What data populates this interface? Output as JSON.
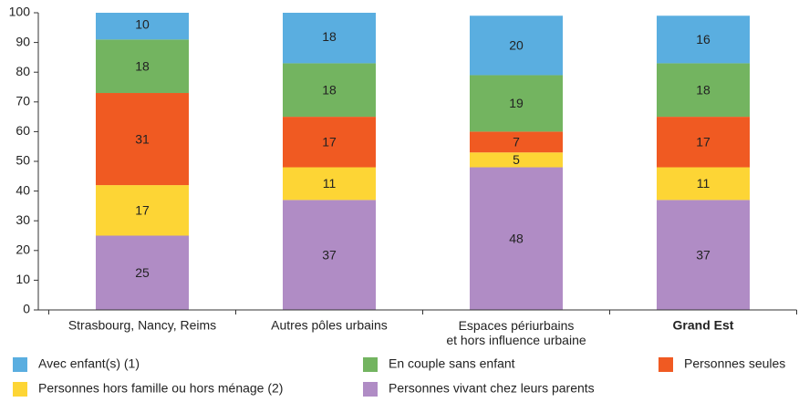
{
  "chart_data": {
    "type": "stacked_bar",
    "categories": [
      "Strasbourg, Nancy, Reims",
      "Autres pôles urbains",
      "Espaces périurbains\net hors influence urbaine",
      "Grand Est"
    ],
    "series": [
      {
        "name": "Avec enfant(s) (1)",
        "color": "#5aaee0",
        "values": [
          10,
          18,
          20,
          16
        ]
      },
      {
        "name": "En couple sans enfant",
        "color": "#73b460",
        "values": [
          18,
          18,
          19,
          18
        ]
      },
      {
        "name": "Personnes seules",
        "color": "#f05a22",
        "values": [
          31,
          17,
          7,
          17
        ]
      },
      {
        "name": "Personnes hors famille ou hors ménage (2)",
        "color": "#fdd535",
        "values": [
          17,
          11,
          5,
          11
        ]
      },
      {
        "name": "Personnes vivant chez leurs parents",
        "color": "#b08cc5",
        "values": [
          25,
          37,
          48,
          37
        ]
      }
    ],
    "ylim": [
      0,
      100
    ],
    "yticks": [
      0,
      10,
      20,
      30,
      40,
      50,
      60,
      70,
      80,
      90,
      100
    ],
    "grid": false
  }
}
